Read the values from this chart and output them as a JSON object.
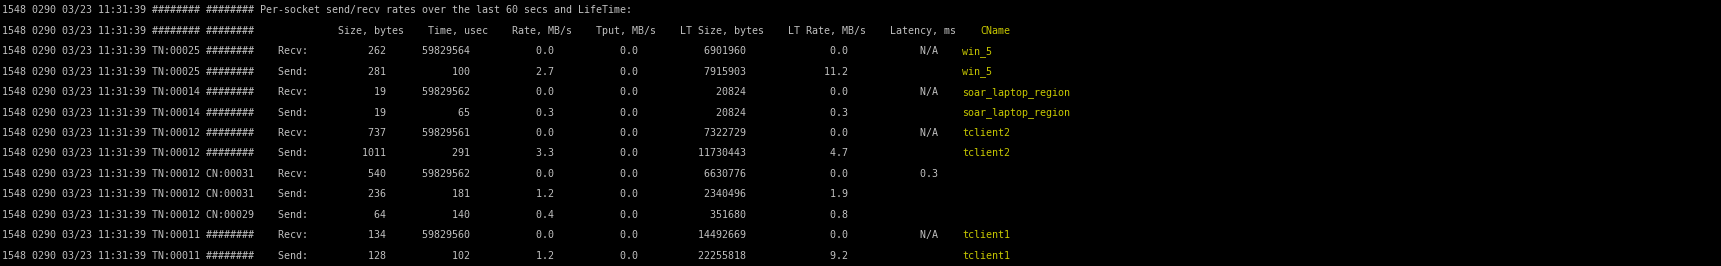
{
  "bg_color": "#000000",
  "text_color": "#c0c0c0",
  "highlight_color": "#c8c800",
  "fig_width": 17.21,
  "fig_height": 2.66,
  "dpi": 100,
  "font_size": 7.2,
  "lines": [
    {
      "prefix": "1548 0290 03/23 11:31:39 ######## ######## Per-socket send/recv rates over the last 60 secs and LifeTime:",
      "cname": ""
    },
    {
      "prefix": "1548 0290 03/23 11:31:39 ######## ########              Size, bytes    Time, usec    Rate, MB/s    Tput, MB/s    LT Size, bytes    LT Rate, MB/s    Latency, ms    ",
      "cname": "CName"
    },
    {
      "prefix": "1548 0290 03/23 11:31:39 TN:00025 ########    Recv:          262      59829564           0.0           0.0           6901960              0.0            N/A    ",
      "cname": "win_5"
    },
    {
      "prefix": "1548 0290 03/23 11:31:39 TN:00025 ########    Send:          281           100           2.7           0.0           7915903             11.2                   ",
      "cname": "win_5"
    },
    {
      "prefix": "1548 0290 03/23 11:31:39 TN:00014 ########    Recv:           19      59829562           0.0           0.0             20824              0.0            N/A    ",
      "cname": "soar_laptop_region"
    },
    {
      "prefix": "1548 0290 03/23 11:31:39 TN:00014 ########    Send:           19            65           0.3           0.0             20824              0.3                   ",
      "cname": "soar_laptop_region"
    },
    {
      "prefix": "1548 0290 03/23 11:31:39 TN:00012 ########    Recv:          737      59829561           0.0           0.0           7322729              0.0            N/A    ",
      "cname": "tclient2"
    },
    {
      "prefix": "1548 0290 03/23 11:31:39 TN:00012 ########    Send:         1011           291           3.3           0.0          11730443              4.7                   ",
      "cname": "tclient2"
    },
    {
      "prefix": "1548 0290 03/23 11:31:39 TN:00012 CN:00031    Recv:          540      59829562           0.0           0.0           6630776              0.0            0.3",
      "cname": ""
    },
    {
      "prefix": "1548 0290 03/23 11:31:39 TN:00012 CN:00031    Send:          236           181           1.2           0.0           2340496              1.9",
      "cname": ""
    },
    {
      "prefix": "1548 0290 03/23 11:31:39 TN:00012 CN:00029    Send:           64           140           0.4           0.0            351680              0.8",
      "cname": ""
    },
    {
      "prefix": "1548 0290 03/23 11:31:39 TN:00011 ########    Recv:          134      59829560           0.0           0.0          14492669              0.0            N/A    ",
      "cname": "tclient1"
    },
    {
      "prefix": "1548 0290 03/23 11:31:39 TN:00011 ########    Send:          128           102           1.2           0.0          22255818              9.2                   ",
      "cname": "tclient1"
    }
  ]
}
